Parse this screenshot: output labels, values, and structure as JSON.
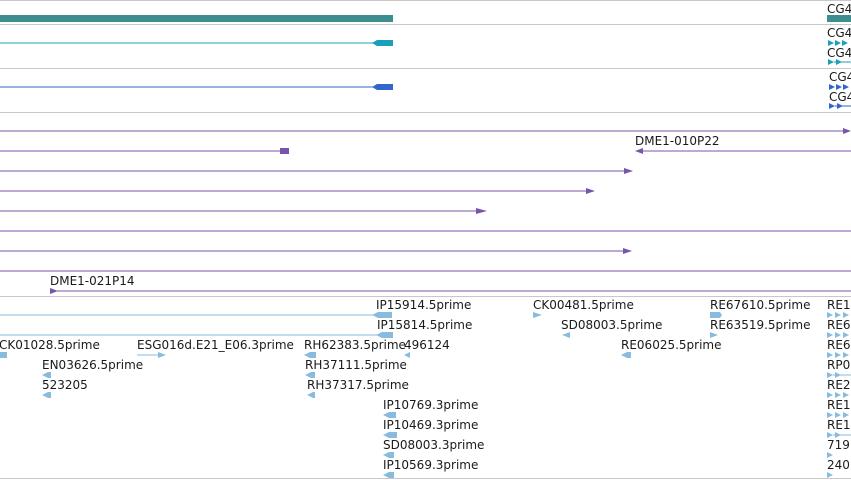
{
  "colors": {
    "gene_teal": "#3d8f8f",
    "transcript_cyan": "#1aa0b8",
    "transcript_blue": "#3366cc",
    "clone_purple": "#7755aa",
    "est_lightblue": "#88bbdd",
    "separator": "#c8c8c8"
  },
  "track_labels": {
    "gene_right": "CG4",
    "transcript_right_a1": "CG4",
    "transcript_right_a2": "CG4",
    "transcript_right_b1": "CG4",
    "transcript_right_b2": "CG4"
  },
  "bac_clones": {
    "clone_010P22": "DME1-010P22",
    "clone_021P14": "DME1-021P14"
  },
  "est_labels": [
    {
      "key": "ip15914",
      "text": "IP15914.5prime"
    },
    {
      "key": "ck00481",
      "text": "CK00481.5prime"
    },
    {
      "key": "re67610",
      "text": "RE67610.5prime"
    },
    {
      "key": "re1_a",
      "text": "RE1"
    },
    {
      "key": "ip15814",
      "text": "IP15814.5prime"
    },
    {
      "key": "sd08003_5",
      "text": "SD08003.5prime"
    },
    {
      "key": "re63519",
      "text": "RE63519.5prime"
    },
    {
      "key": "re6_a",
      "text": "RE6"
    },
    {
      "key": "ck01028",
      "text": "CK01028.5prime"
    },
    {
      "key": "esg016d",
      "text": "ESG016d.E21_E06.3prime"
    },
    {
      "key": "rh62383",
      "text": "RH62383.5prime"
    },
    {
      "key": "n496124",
      "text": "496124"
    },
    {
      "key": "re06025",
      "text": "RE06025.5prime"
    },
    {
      "key": "re6_b",
      "text": "RE6"
    },
    {
      "key": "en03626",
      "text": "EN03626.5prime"
    },
    {
      "key": "rh37111",
      "text": "RH37111.5prime"
    },
    {
      "key": "rp0",
      "text": "RP0"
    },
    {
      "key": "n523205",
      "text": "523205"
    },
    {
      "key": "rh37317",
      "text": "RH37317.5prime"
    },
    {
      "key": "re2",
      "text": "RE2"
    },
    {
      "key": "ip10769",
      "text": "IP10769.3prime"
    },
    {
      "key": "re1_b",
      "text": "RE1"
    },
    {
      "key": "ip10469",
      "text": "IP10469.3prime"
    },
    {
      "key": "re1_c",
      "text": "RE1"
    },
    {
      "key": "sd08003_3",
      "text": "SD08003.3prime"
    },
    {
      "key": "n719",
      "text": "719"
    },
    {
      "key": "ip10569",
      "text": "IP10569.3prime"
    },
    {
      "key": "n240",
      "text": "240"
    }
  ]
}
